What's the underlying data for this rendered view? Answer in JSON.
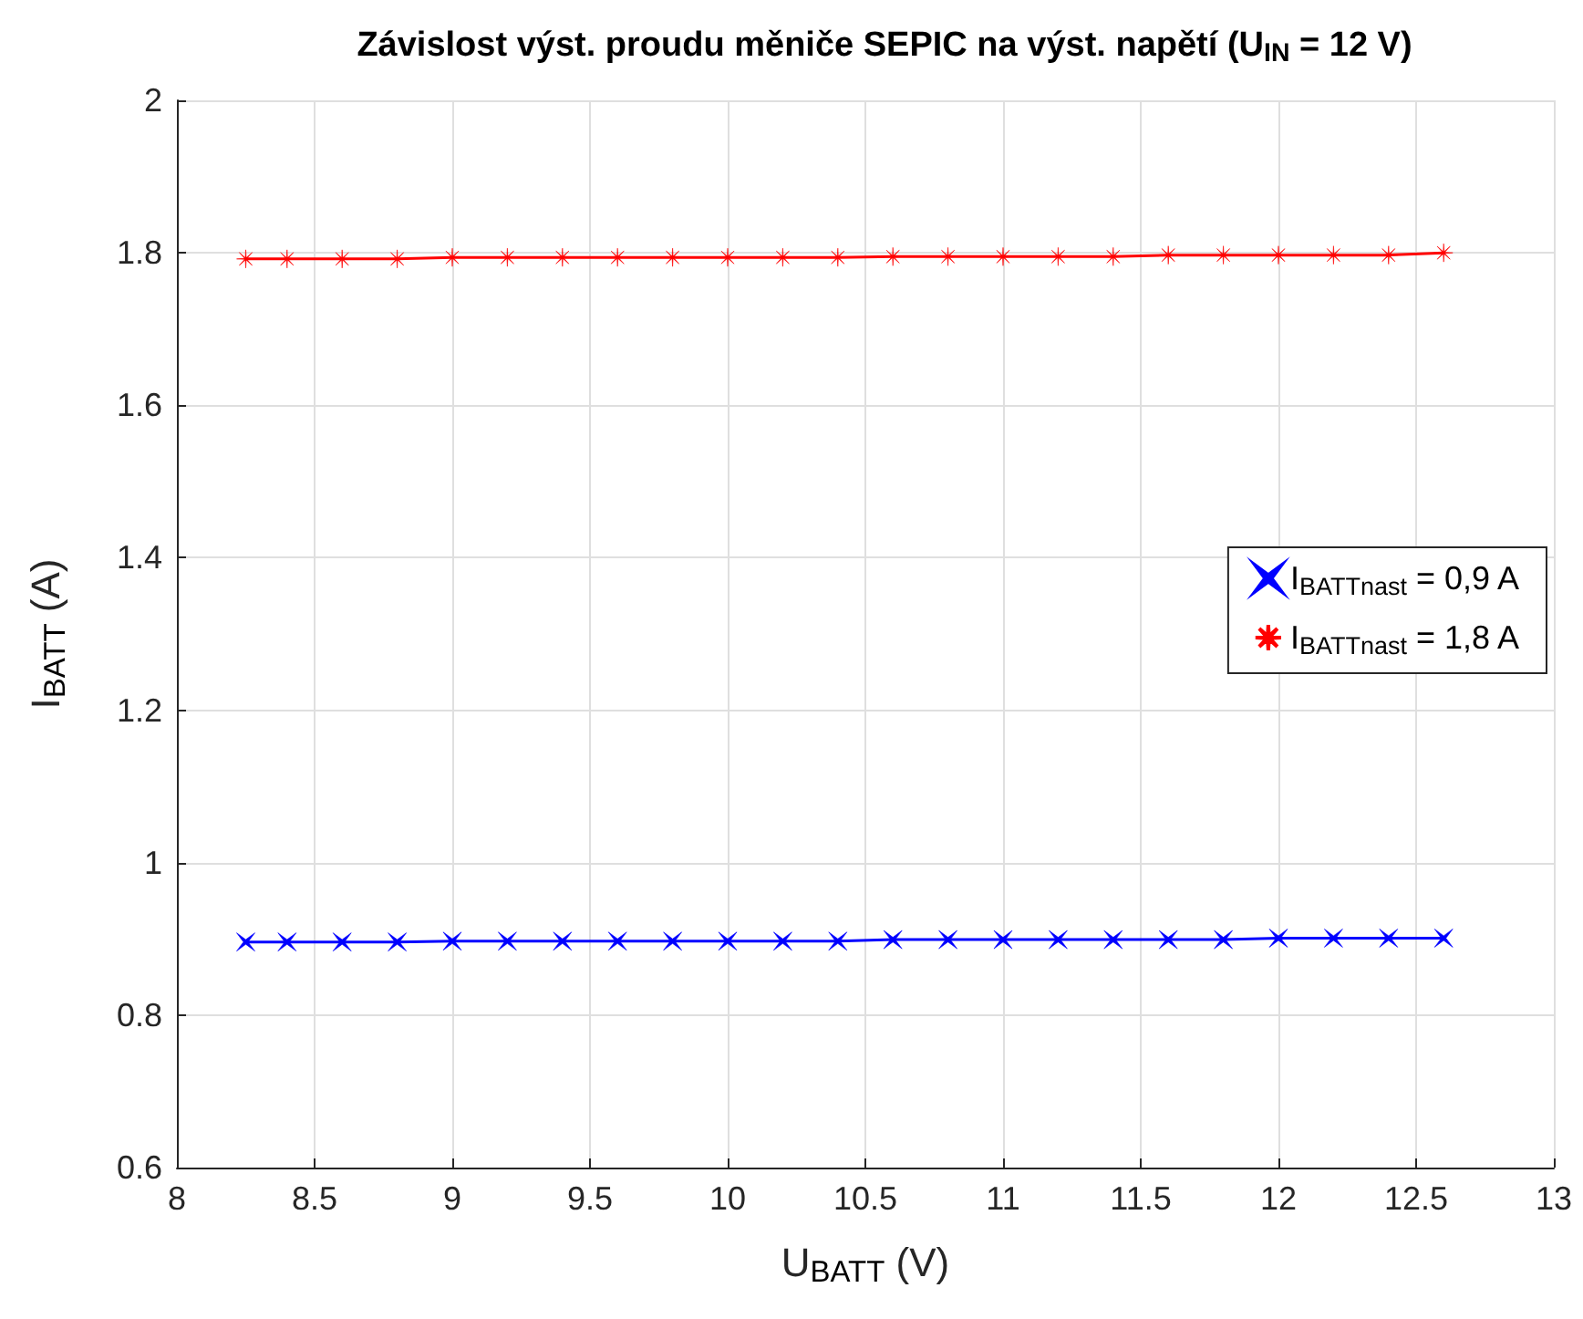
{
  "chart_data": {
    "type": "line",
    "title": "Závislost výst. proudu měniče SEPIC na výst. napětí (U$_{IN}$ = 12 V)",
    "xlabel": "U$_{BATT}$ (V)",
    "ylabel": "I$_{BATT}$ (A)",
    "x": [
      8.25,
      8.4,
      8.6,
      8.8,
      9,
      9.2,
      9.4,
      9.6,
      9.8,
      10,
      10.2,
      10.4,
      10.6,
      10.8,
      11,
      11.2,
      11.4,
      11.6,
      11.8,
      12,
      12.2,
      12.4,
      12.6
    ],
    "series": [
      {
        "name": "I$_{BATTnast}$ = 0,9 A",
        "color": "#0000ff",
        "marker": "cross",
        "values": [
          0.896,
          0.896,
          0.896,
          0.896,
          0.897,
          0.897,
          0.897,
          0.897,
          0.897,
          0.897,
          0.897,
          0.897,
          0.899,
          0.899,
          0.899,
          0.899,
          0.899,
          0.899,
          0.899,
          0.901,
          0.901,
          0.901,
          0.901
        ]
      },
      {
        "name": "I$_{BATTnast}$ = 1,8 A",
        "color": "#ff0000",
        "marker": "star",
        "values": [
          1.792,
          1.792,
          1.792,
          1.792,
          1.794,
          1.794,
          1.794,
          1.794,
          1.794,
          1.794,
          1.794,
          1.794,
          1.795,
          1.795,
          1.795,
          1.795,
          1.795,
          1.797,
          1.797,
          1.797,
          1.797,
          1.797,
          1.8
        ]
      }
    ],
    "xlim": [
      8,
      13
    ],
    "xticks": [
      8,
      8.5,
      9,
      9.5,
      10,
      10.5,
      11,
      11.5,
      12,
      12.5,
      13
    ],
    "ylim": [
      0.6,
      2
    ],
    "yticks": [
      0.6,
      0.8,
      1,
      1.2,
      1.4,
      1.6,
      1.8,
      2
    ],
    "grid": true,
    "legend": "right",
    "line_style": "solid"
  }
}
